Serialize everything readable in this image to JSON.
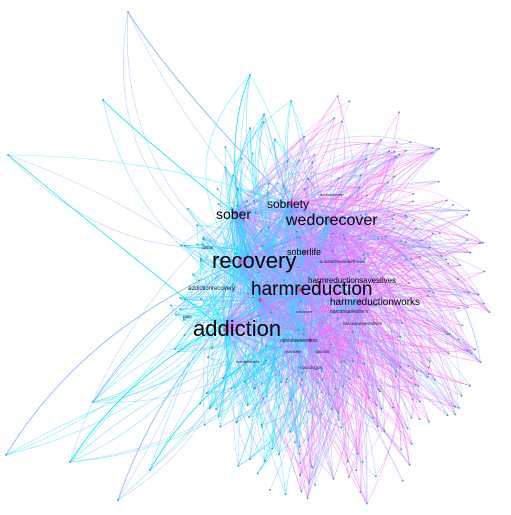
{
  "network": {
    "edge_colors": [
      "#00e5ff",
      "#29c6ff",
      "#7fb2ff",
      "#b58cff",
      "#ff7bff",
      "#ff5af0"
    ],
    "node_color": "#1aa0b8",
    "hub_color": "#e0409a",
    "background": "#ffffff"
  },
  "labels": {
    "addiction": "addiction",
    "recovery": "recovery",
    "harmreduction": "harmreduction",
    "wedorecover": "wedorecover",
    "sober": "sober",
    "sobriety": "sobriety",
    "harmreductionworks": "harmreductionworks",
    "soberlife": "soberlife",
    "harmreductionsaveslives": "harmreductionsaveslives",
    "addictionrecovery": "addictionrecovery",
    "narcansaveslives": "narcansaveslives",
    "opioidawareness": "opioidawareness",
    "substanceusedisorder": "substanceusebehavior",
    "opioidcrisis": "opioidcrisis",
    "naloxonesaveslives": "naloxonesaveslives",
    "opioids": "opioids",
    "detox": "detox",
    "pain": "pain",
    "naloxone": "naloxone",
    "mentalhealth": "mentalhealth",
    "overdose": "overdose",
    "addictionhelp": "addictionhelp"
  }
}
